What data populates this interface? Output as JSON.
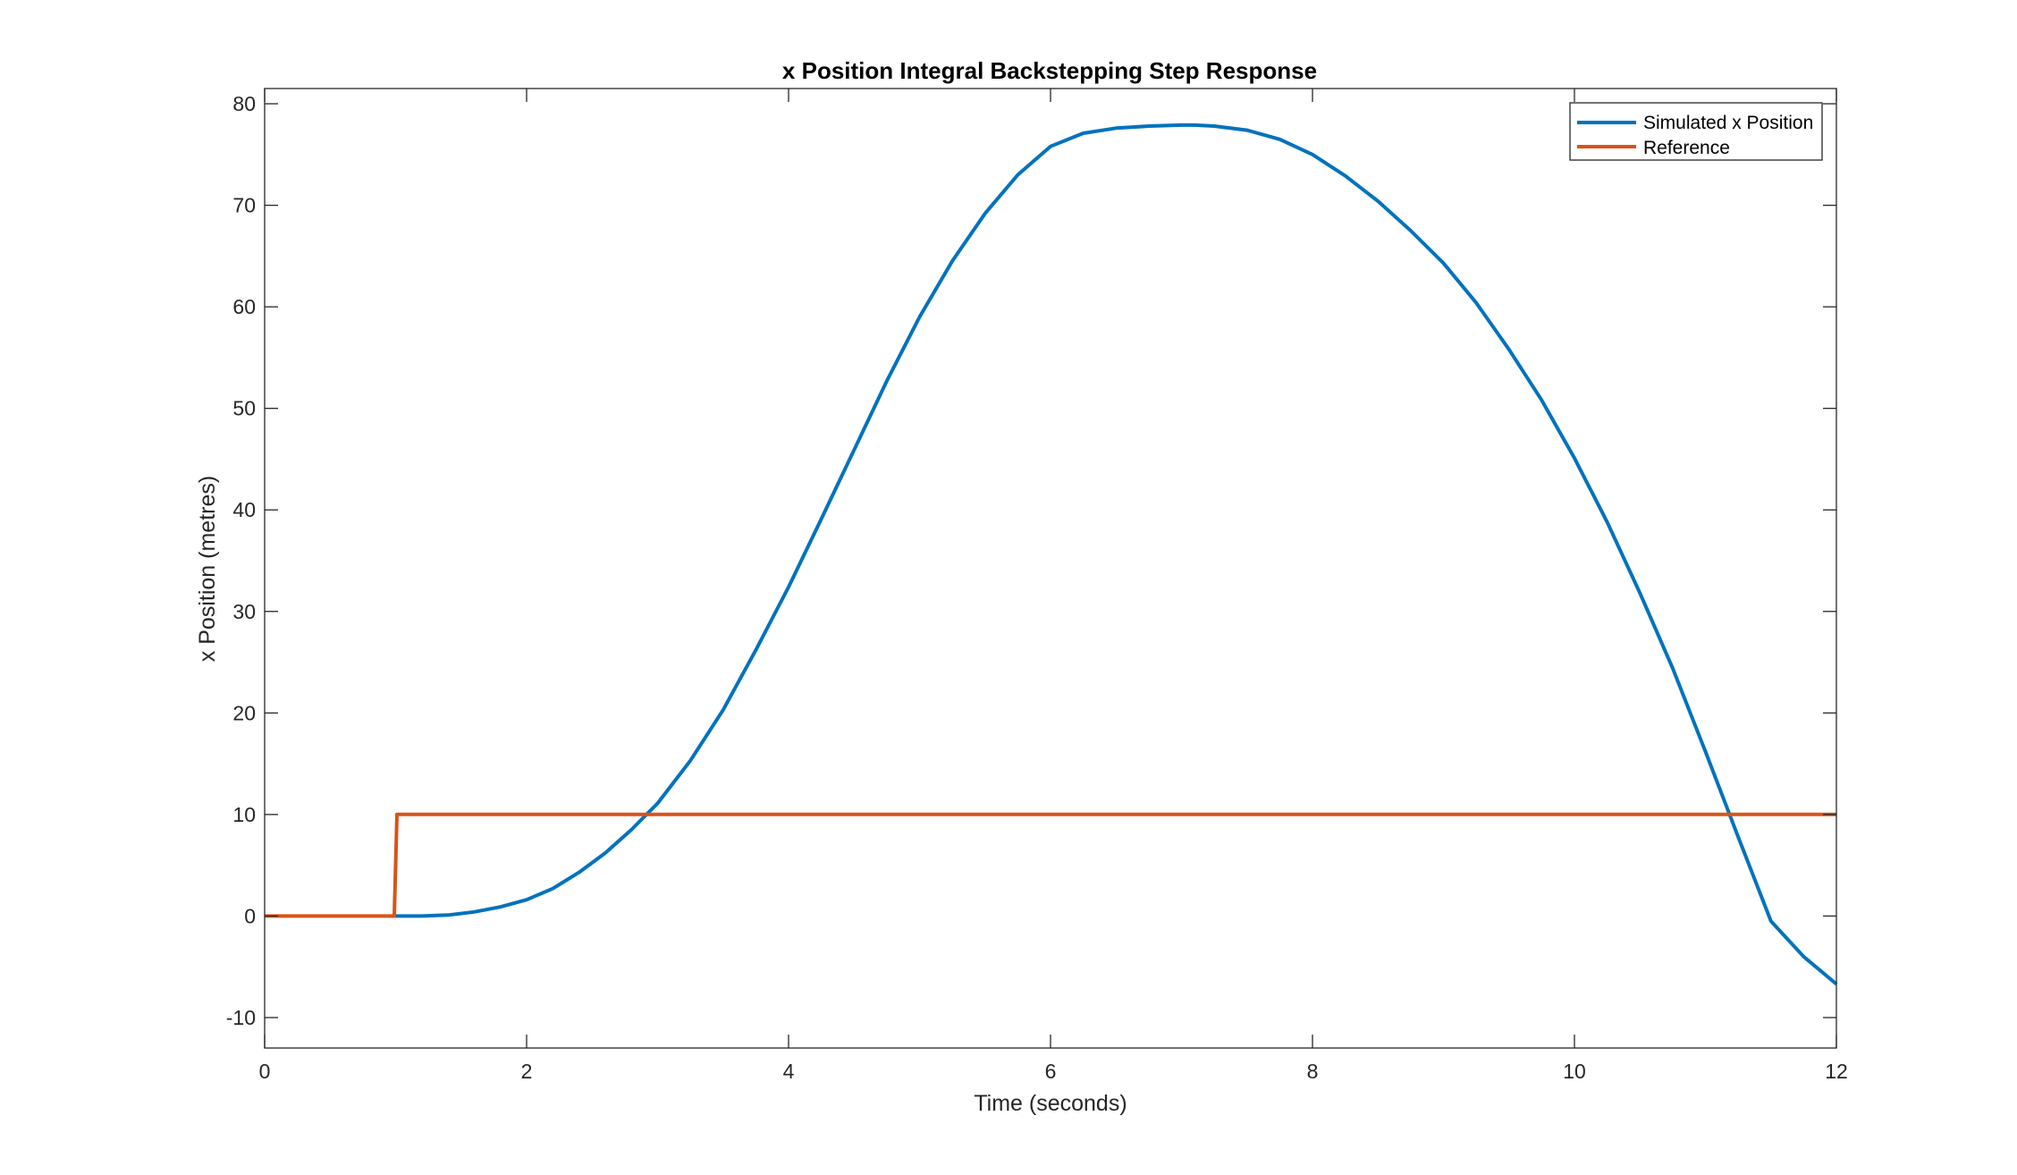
{
  "chart_data": {
    "type": "line",
    "title": "x Position Integral Backstepping Step Response",
    "xlabel": "Time (seconds)",
    "ylabel": "x Position (metres)",
    "xlim": [
      0,
      12
    ],
    "ylim": [
      -13,
      81.5
    ],
    "xticks": [
      0,
      2,
      4,
      6,
      8,
      10,
      12
    ],
    "yticks": [
      -10,
      0,
      10,
      20,
      30,
      40,
      50,
      60,
      70,
      80
    ],
    "grid": false,
    "legend_position": "top-right",
    "series": [
      {
        "name": "Simulated x Position",
        "color": "#0072BD",
        "x": [
          1,
          1.2,
          1.4,
          1.6,
          1.8,
          2,
          2.2,
          2.4,
          2.6,
          2.8,
          3,
          3.25,
          3.5,
          3.75,
          4,
          4.25,
          4.5,
          4.75,
          5,
          5.25,
          5.5,
          5.75,
          6,
          6.25,
          6.5,
          6.75,
          7,
          7.1,
          7.25,
          7.5,
          7.75,
          8,
          8.25,
          8.5,
          8.75,
          9,
          9.25,
          9.5,
          9.75,
          10,
          10.25,
          10.5,
          10.75,
          11,
          11.25,
          11.5,
          11.75,
          12
        ],
        "y": [
          0,
          0,
          0.1,
          0.4,
          0.9,
          1.6,
          2.7,
          4.3,
          6.2,
          8.5,
          11.1,
          15.3,
          20.3,
          26.2,
          32.4,
          39.1,
          45.9,
          52.7,
          59,
          64.5,
          69.2,
          73,
          75.8,
          77.1,
          77.6,
          77.8,
          77.9,
          77.9,
          77.8,
          77.4,
          76.5,
          75,
          72.9,
          70.4,
          67.5,
          64.3,
          60.4,
          55.8,
          50.8,
          45.1,
          38.8,
          31.8,
          24.4,
          16.2,
          7.8,
          -0.5,
          -4,
          -6.7
        ]
      },
      {
        "name": "Reference",
        "color": "#D95319",
        "x": [
          0,
          0.99,
          1.01,
          12
        ],
        "y": [
          0,
          0,
          10,
          10
        ]
      }
    ]
  }
}
